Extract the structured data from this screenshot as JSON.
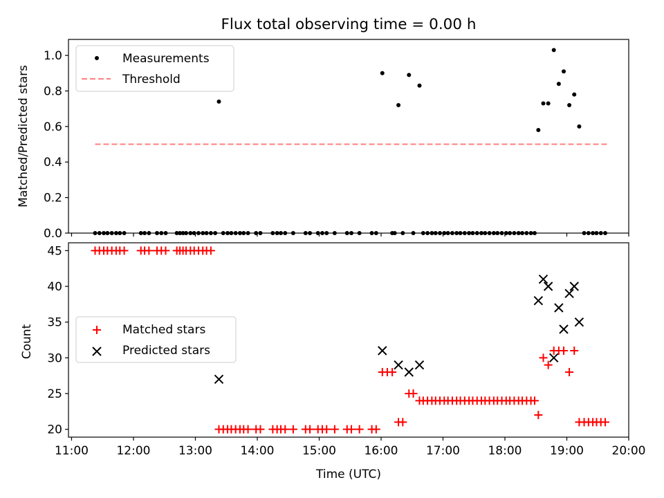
{
  "figure": {
    "title": "Flux total observing time = 0.00 h"
  },
  "chart_data": [
    {
      "type": "scatter",
      "panel": "top",
      "title": "Flux total observing time = 0.00 h",
      "ylabel": "Matched/Predicted stars",
      "xlabel": "",
      "xlim": [
        10.95,
        20.0
      ],
      "ylim": [
        0.0,
        1.09
      ],
      "yticks": [
        0.0,
        0.2,
        0.4,
        0.6,
        0.8,
        1.0
      ],
      "ytick_labels": [
        "0.0",
        "0.2",
        "0.4",
        "0.6",
        "0.8",
        "1.0"
      ],
      "xticks": [
        11,
        12,
        13,
        14,
        15,
        16,
        17,
        18,
        19,
        20
      ],
      "legend_position": "top-left",
      "series": [
        {
          "name": "Measurements",
          "kind": "scatter",
          "marker": "dot",
          "color": "#000000",
          "x": [
            11.38,
            11.45,
            11.52,
            11.58,
            11.65,
            11.72,
            11.78,
            11.85,
            12.12,
            12.18,
            12.25,
            12.38,
            12.45,
            12.52,
            12.7,
            12.75,
            12.8,
            12.85,
            12.92,
            12.98,
            13.05,
            13.12,
            13.18,
            13.25,
            13.32,
            13.38,
            13.45,
            13.52,
            13.58,
            13.65,
            13.72,
            13.78,
            13.85,
            13.98,
            14.05,
            14.25,
            14.32,
            14.38,
            14.45,
            14.58,
            14.78,
            14.85,
            14.98,
            15.05,
            15.12,
            15.25,
            15.45,
            15.52,
            15.65,
            15.85,
            15.92,
            16.02,
            16.18,
            16.22,
            16.28,
            16.35,
            16.45,
            16.52,
            16.62,
            16.68,
            16.75,
            16.82,
            16.88,
            16.95,
            17.02,
            17.08,
            17.15,
            17.22,
            17.28,
            17.35,
            17.42,
            17.48,
            17.55,
            17.62,
            17.68,
            17.75,
            17.82,
            17.88,
            17.95,
            18.02,
            18.08,
            18.15,
            18.22,
            18.28,
            18.35,
            18.42,
            18.48,
            18.54,
            18.62,
            18.7,
            18.79,
            18.87,
            18.95,
            19.04,
            19.12,
            19.2,
            19.28,
            19.35,
            19.42,
            19.48,
            19.55,
            19.62
          ],
          "y": [
            0,
            0,
            0,
            0,
            0,
            0,
            0,
            0,
            0,
            0,
            0,
            0,
            0,
            0,
            0,
            0,
            0,
            0,
            0,
            0,
            0,
            0,
            0,
            0,
            0,
            0.74,
            0,
            0,
            0,
            0,
            0,
            0,
            0,
            0,
            0,
            0,
            0,
            0,
            0,
            0,
            0,
            0,
            0,
            0,
            0,
            0,
            0,
            0,
            0,
            0,
            0,
            0.9,
            0,
            0,
            0.72,
            0,
            0.89,
            0,
            0.83,
            0,
            0,
            0,
            0,
            0,
            0,
            0,
            0,
            0,
            0,
            0,
            0,
            0,
            0,
            0,
            0,
            0,
            0,
            0,
            0,
            0,
            0,
            0,
            0,
            0,
            0,
            0,
            0,
            0.58,
            0.73,
            0.73,
            1.03,
            0.84,
            0.91,
            0.72,
            0.78,
            0.6,
            0,
            0,
            0,
            0,
            0,
            0
          ]
        },
        {
          "name": "Threshold",
          "kind": "line",
          "style": "dashed",
          "color": "#ff7f7f",
          "x": [
            11.38,
            19.65
          ],
          "y": [
            0.5,
            0.5
          ]
        }
      ]
    },
    {
      "type": "scatter",
      "panel": "bottom",
      "ylabel": "Count",
      "xlabel": "Time (UTC)",
      "xlim": [
        10.95,
        20.0
      ],
      "ylim": [
        18.9,
        46.1
      ],
      "yticks": [
        20,
        25,
        30,
        35,
        40,
        45
      ],
      "ytick_labels": [
        "20",
        "25",
        "30",
        "35",
        "40",
        "45"
      ],
      "xticks": [
        11,
        12,
        13,
        14,
        15,
        16,
        17,
        18,
        19,
        20
      ],
      "xtick_labels": [
        "11:00",
        "12:00",
        "13:00",
        "14:00",
        "15:00",
        "16:00",
        "17:00",
        "18:00",
        "19:00",
        "20:00"
      ],
      "legend_position": "center-left",
      "series": [
        {
          "name": "Matched stars",
          "kind": "scatter",
          "marker": "plus",
          "color": "#ff0000",
          "x": [
            11.38,
            11.45,
            11.52,
            11.58,
            11.65,
            11.72,
            11.78,
            11.85,
            12.12,
            12.18,
            12.25,
            12.38,
            12.45,
            12.52,
            12.7,
            12.75,
            12.8,
            12.85,
            12.92,
            12.98,
            13.05,
            13.12,
            13.18,
            13.25,
            13.38,
            13.45,
            13.52,
            13.58,
            13.65,
            13.72,
            13.78,
            13.85,
            13.98,
            14.05,
            14.25,
            14.32,
            14.38,
            14.45,
            14.58,
            14.78,
            14.85,
            14.98,
            15.05,
            15.12,
            15.25,
            15.45,
            15.52,
            15.65,
            15.85,
            15.92,
            16.02,
            16.1,
            16.18,
            16.28,
            16.35,
            16.45,
            16.52,
            16.62,
            16.68,
            16.75,
            16.82,
            16.88,
            16.95,
            17.02,
            17.08,
            17.15,
            17.22,
            17.28,
            17.35,
            17.42,
            17.48,
            17.55,
            17.62,
            17.68,
            17.75,
            17.82,
            17.88,
            17.95,
            18.02,
            18.08,
            18.15,
            18.22,
            18.28,
            18.35,
            18.42,
            18.48,
            18.54,
            18.62,
            18.7,
            18.79,
            18.87,
            18.95,
            19.04,
            19.12,
            19.2,
            19.28,
            19.35,
            19.42,
            19.48,
            19.55,
            19.62
          ],
          "y": [
            45,
            45,
            45,
            45,
            45,
            45,
            45,
            45,
            45,
            45,
            45,
            45,
            45,
            45,
            45,
            45,
            45,
            45,
            45,
            45,
            45,
            45,
            45,
            45,
            20,
            20,
            20,
            20,
            20,
            20,
            20,
            20,
            20,
            20,
            20,
            20,
            20,
            20,
            20,
            20,
            20,
            20,
            20,
            20,
            20,
            20,
            20,
            20,
            20,
            20,
            28,
            28,
            28,
            21,
            21,
            25,
            25,
            24,
            24,
            24,
            24,
            24,
            24,
            24,
            24,
            24,
            24,
            24,
            24,
            24,
            24,
            24,
            24,
            24,
            24,
            24,
            24,
            24,
            24,
            24,
            24,
            24,
            24,
            24,
            24,
            24,
            22,
            30,
            29,
            31,
            31,
            31,
            28,
            31,
            21,
            21,
            21,
            21,
            21,
            21,
            21
          ]
        },
        {
          "name": "Predicted stars",
          "kind": "scatter",
          "marker": "x",
          "color": "#000000",
          "x": [
            13.38,
            16.02,
            16.28,
            16.45,
            16.62,
            18.54,
            18.62,
            18.7,
            18.79,
            18.87,
            18.95,
            19.04,
            19.12,
            19.2
          ],
          "y": [
            27,
            31,
            29,
            28,
            29,
            38,
            41,
            40,
            30,
            37,
            34,
            39,
            40,
            35
          ]
        }
      ]
    }
  ]
}
